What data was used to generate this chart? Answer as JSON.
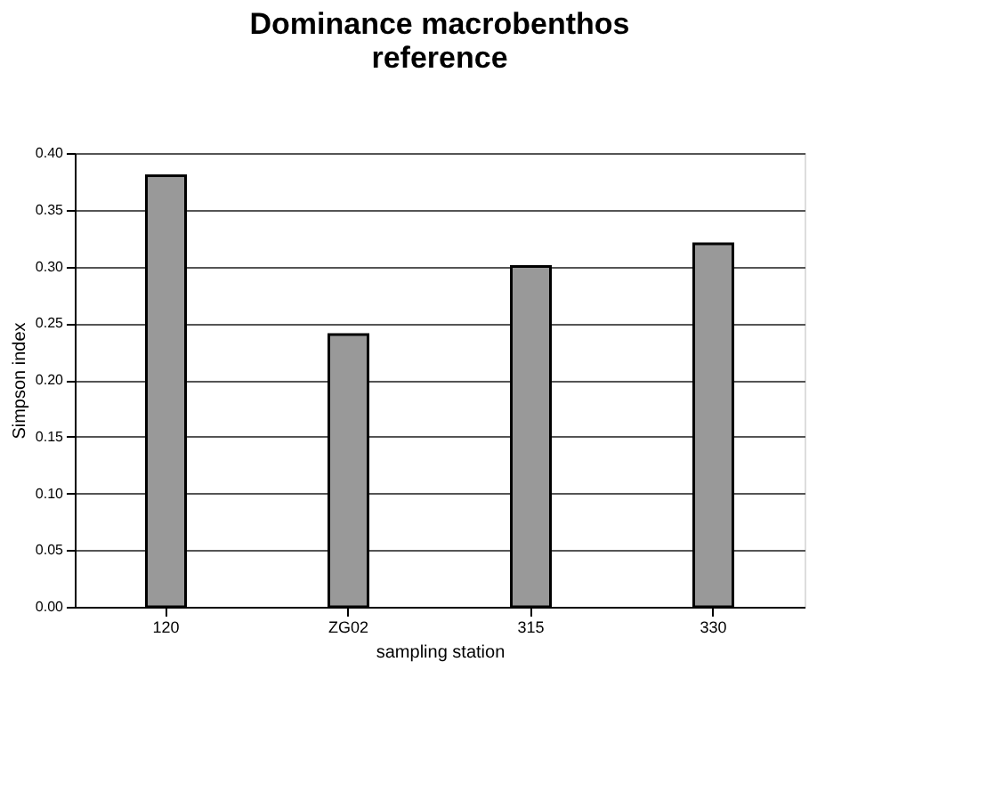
{
  "chart_data": {
    "type": "bar",
    "title": "Dominance macrobenthos\nreference",
    "xlabel": "sampling station",
    "ylabel": "Simpson index",
    "categories": [
      "120",
      "ZG02",
      "315",
      "330"
    ],
    "values": [
      0.38,
      0.24,
      0.3,
      0.32
    ],
    "color": "#999999",
    "ylim": [
      0,
      0.4
    ],
    "yticks": [
      {
        "value": 0,
        "label": "0.00"
      },
      {
        "value": 0.05,
        "label": "0.05"
      },
      {
        "value": 0.1,
        "label": "0.10"
      },
      {
        "value": 0.15,
        "label": "0.15"
      },
      {
        "value": 0.2,
        "label": "0.20"
      },
      {
        "value": 0.25,
        "label": "0.25"
      },
      {
        "value": 0.3,
        "label": "0.30"
      },
      {
        "value": 0.35,
        "label": "0.35"
      },
      {
        "value": 0.4,
        "label": "0.40"
      }
    ],
    "grid": "y"
  }
}
